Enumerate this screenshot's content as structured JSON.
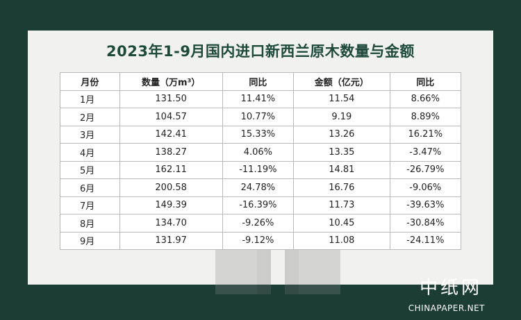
{
  "title": "2023年1-9月国内进口新西兰原木数量与金额",
  "headers": [
    "月份",
    "数量（万m³）",
    "同比",
    "金额（亿元）",
    "同比"
  ],
  "rows": [
    {
      "month": "1月",
      "qty": "131.50",
      "qty_yoy": "11.41%",
      "qty_dir": "pos",
      "amount": "11.54",
      "amt_yoy": "8.66%",
      "amt_dir": "pos"
    },
    {
      "month": "2月",
      "qty": "104.57",
      "qty_yoy": "10.77%",
      "qty_dir": "pos",
      "amount": "9.19",
      "amt_yoy": "8.89%",
      "amt_dir": "pos"
    },
    {
      "month": "3月",
      "qty": "142.41",
      "qty_yoy": "15.33%",
      "qty_dir": "pos",
      "amount": "13.26",
      "amt_yoy": "16.21%",
      "amt_dir": "pos"
    },
    {
      "month": "4月",
      "qty": "138.27",
      "qty_yoy": "4.06%",
      "qty_dir": "pos",
      "amount": "13.35",
      "amt_yoy": "-3.47%",
      "amt_dir": "neg"
    },
    {
      "month": "5月",
      "qty": "162.11",
      "qty_yoy": "-11.19%",
      "qty_dir": "neg",
      "amount": "14.81",
      "amt_yoy": "-26.79%",
      "amt_dir": "neg"
    },
    {
      "month": "6月",
      "qty": "200.58",
      "qty_yoy": "24.78%",
      "qty_dir": "pos",
      "amount": "16.76",
      "amt_yoy": "-9.06%",
      "amt_dir": "neg"
    },
    {
      "month": "7月",
      "qty": "149.39",
      "qty_yoy": "-16.39%",
      "qty_dir": "neg",
      "amount": "11.73",
      "amt_yoy": "-39.63%",
      "amt_dir": "neg"
    },
    {
      "month": "8月",
      "qty": "134.70",
      "qty_yoy": "-9.26%",
      "qty_dir": "neg",
      "amount": "10.45",
      "amt_yoy": "-30.84%",
      "amt_dir": "neg"
    },
    {
      "month": "9月",
      "qty": "131.97",
      "qty_yoy": "-9.12%",
      "qty_dir": "neg",
      "amount": "11.08",
      "amt_yoy": "-24.11%",
      "amt_dir": "neg"
    }
  ],
  "colors": {
    "positive": "#e3342f",
    "negative": "#2f9e44",
    "background": "#1c3d34",
    "title": "#1e4a3c"
  },
  "watermark": {
    "icon": "chinapaper-logo-icon"
  },
  "brand": {
    "cn": "中纸网",
    "en": "CHINAPAPER.NET"
  }
}
